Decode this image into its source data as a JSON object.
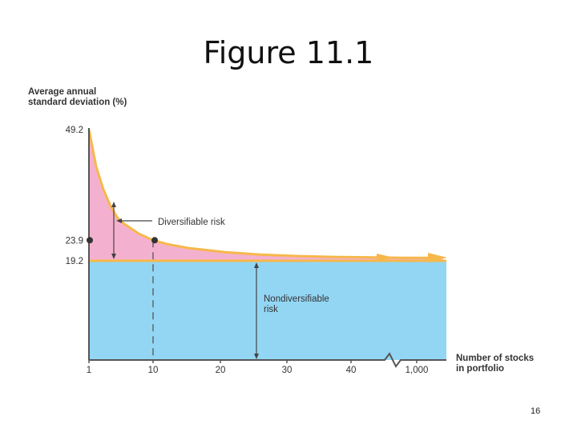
{
  "slide": {
    "title": "Figure 11.1",
    "page_number": "16"
  },
  "chart_data": {
    "type": "area",
    "ylabel_lines": [
      "Average annual",
      "standard deviation (%)"
    ],
    "xlabel_lines": [
      "Number of stocks",
      "in portfolio"
    ],
    "y_ticks": [
      "49.2",
      "23.9",
      "19.2"
    ],
    "x_ticks": [
      "1",
      "10",
      "20",
      "30",
      "40",
      "1,000"
    ],
    "annotations": {
      "diversifiable": "Diversifiable risk",
      "nondiversifiable_lines": [
        "Nondiversifiable",
        "risk"
      ]
    },
    "series": {
      "x": [
        1,
        2,
        3,
        4,
        5,
        6,
        8,
        10,
        12,
        15,
        20,
        25,
        30,
        35,
        40,
        45,
        50
      ],
      "total_risk": [
        49.2,
        40.8,
        35.6,
        31.8,
        29.0,
        27.6,
        25.4,
        23.9,
        23.0,
        22.1,
        21.2,
        20.6,
        20.3,
        20.1,
        20.0,
        19.9,
        19.85
      ]
    },
    "nondiversifiable_level": 19.2,
    "highlight_point": {
      "x": 10,
      "y": 23.9
    },
    "colors": {
      "diversifiable_fill": "#f4b1cf",
      "nondiversifiable_fill": "#93d6f4",
      "curve": "#f6b84a",
      "axis": "#555555"
    }
  }
}
